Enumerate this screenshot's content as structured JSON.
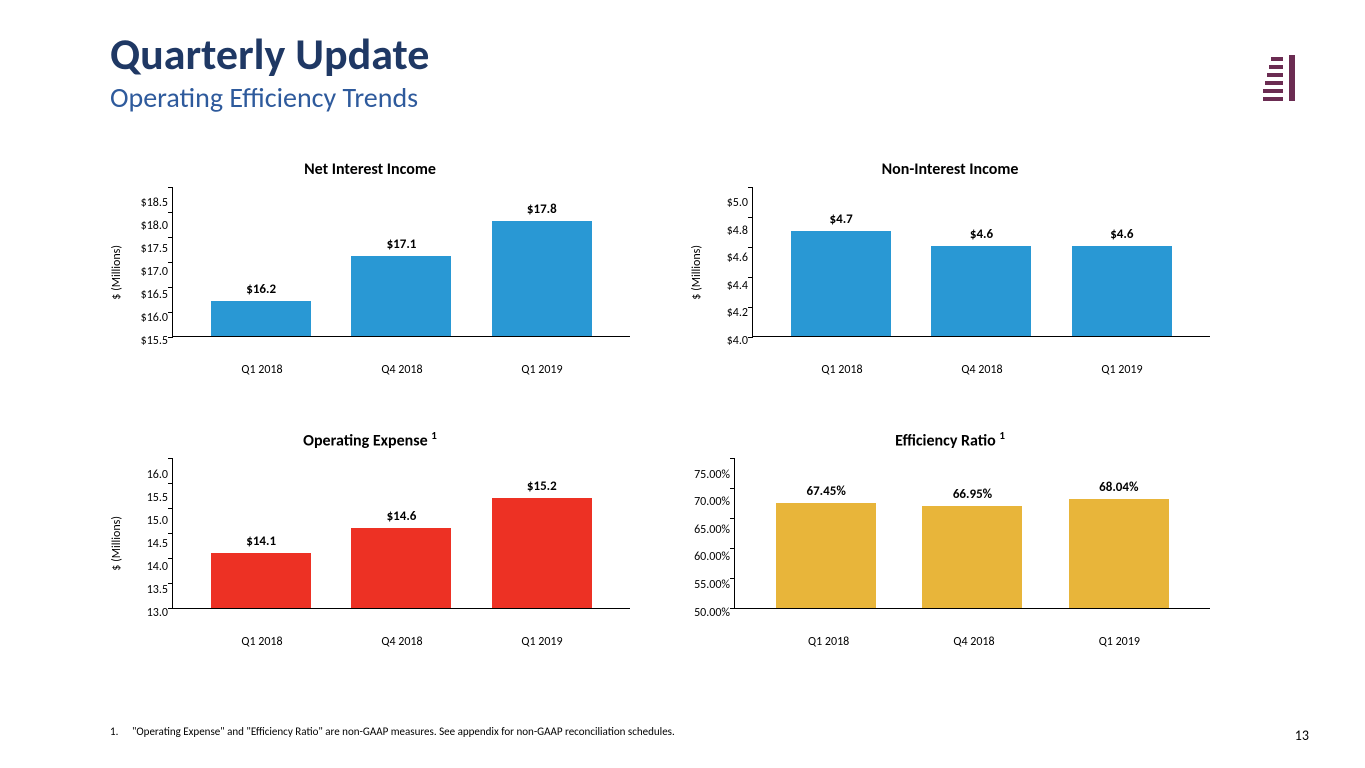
{
  "header": {
    "title": "Quarterly Update",
    "subtitle": "Operating Efficiency Trends"
  },
  "logo": {
    "color": "#6b2c52"
  },
  "page_number": "13",
  "footnote": {
    "marker": "1.",
    "text": "\"Operating Expense\" and \"Efficiency Ratio\" are non-GAAP measures. See appendix for non-GAAP reconciliation schedules."
  },
  "charts": [
    {
      "id": "net_interest_income",
      "type": "bar",
      "title": "Net Interest Income",
      "footnote_sup": "",
      "y_label": "$ (Millions)",
      "y_min": 15.5,
      "y_max": 18.5,
      "y_step": 0.5,
      "y_tick_format": "currency1",
      "categories": [
        "Q1 2018",
        "Q4 2018",
        "Q1 2019"
      ],
      "values": [
        16.2,
        17.1,
        17.8
      ],
      "value_labels": [
        "$16.2",
        "$17.1",
        "$17.8"
      ],
      "bar_color": "#2998d4"
    },
    {
      "id": "non_interest_income",
      "type": "bar",
      "title": "Non-Interest Income",
      "footnote_sup": "",
      "y_label": "$ (Millions)",
      "y_min": 4.0,
      "y_max": 5.0,
      "y_step": 0.2,
      "y_tick_format": "currency1",
      "categories": [
        "Q1 2018",
        "Q4 2018",
        "Q1 2019"
      ],
      "values": [
        4.7,
        4.6,
        4.6
      ],
      "value_labels": [
        "$4.7",
        "$4.6",
        "$4.6"
      ],
      "bar_color": "#2998d4"
    },
    {
      "id": "operating_expense",
      "type": "bar",
      "title": "Operating Expense ",
      "footnote_sup": "1",
      "y_label": "$ (Millions)",
      "y_min": 13.0,
      "y_max": 16.0,
      "y_step": 0.5,
      "y_tick_format": "plain1",
      "categories": [
        "Q1 2018",
        "Q4 2018",
        "Q1 2019"
      ],
      "values": [
        14.1,
        14.6,
        15.2
      ],
      "value_labels": [
        "$14.1",
        "$14.6",
        "$15.2"
      ],
      "bar_color": "#ed3124"
    },
    {
      "id": "efficiency_ratio",
      "type": "bar",
      "title": "Efficiency Ratio ",
      "footnote_sup": "1",
      "y_label": "",
      "y_min": 50.0,
      "y_max": 75.0,
      "y_step": 5.0,
      "y_tick_format": "percent2",
      "categories": [
        "Q1 2018",
        "Q4 2018",
        "Q1 2019"
      ],
      "values": [
        67.45,
        66.95,
        68.04
      ],
      "value_labels": [
        "67.45%",
        "66.95%",
        "68.04%"
      ],
      "bar_color": "#e8b53a"
    }
  ]
}
